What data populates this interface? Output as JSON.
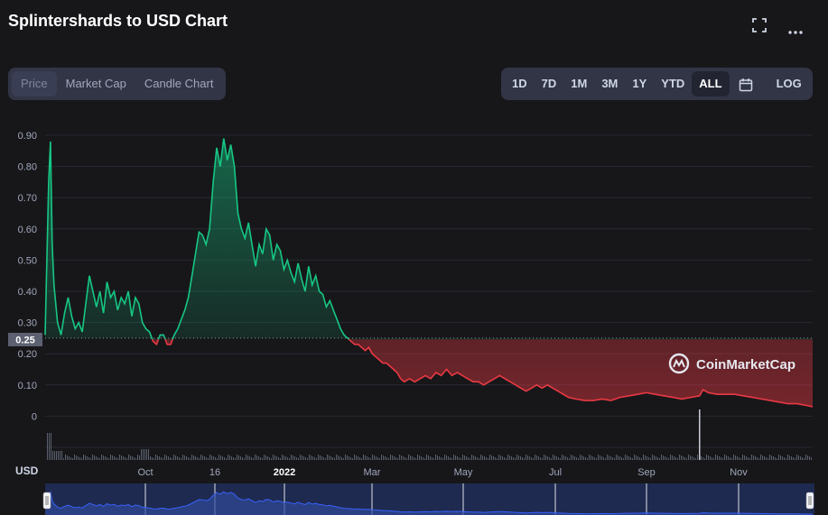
{
  "header": {
    "title": "Splintershards to USD Chart",
    "fullscreen_icon": "fullscreen-icon",
    "more_icon": "more-dots-icon"
  },
  "view_tabs": [
    {
      "label": "Price",
      "active": true
    },
    {
      "label": "Market Cap",
      "active": false
    },
    {
      "label": "Candle Chart",
      "active": false
    }
  ],
  "range_tabs": [
    {
      "label": "1D",
      "active": false
    },
    {
      "label": "7D",
      "active": false
    },
    {
      "label": "1M",
      "active": false
    },
    {
      "label": "3M",
      "active": false
    },
    {
      "label": "1Y",
      "active": false
    },
    {
      "label": "YTD",
      "active": false
    },
    {
      "label": "ALL",
      "active": true
    }
  ],
  "calendar_icon": "calendar-icon",
  "log_label": "LOG",
  "watermark": "CoinMarketCap",
  "currency_label": "USD",
  "colors": {
    "up": "#16c784",
    "down": "#ea3943",
    "background": "#17171a",
    "navigator": "#1e2a4f",
    "navigator_line": "#3861fb"
  },
  "chart_data": {
    "type": "line",
    "title": "Splintershards to USD Chart",
    "ylabel": "USD",
    "ylim": [
      0,
      0.9
    ],
    "y_ticks": [
      "0",
      "0.10",
      "0.20",
      "0.30",
      "0.40",
      "0.50",
      "0.60",
      "0.70",
      "0.80",
      "0.90"
    ],
    "x_ticks": [
      "Oct",
      "16",
      "2022",
      "Mar",
      "May",
      "Jul",
      "Sep",
      "Nov"
    ],
    "reference_price": 0.25,
    "reference_label": "0.25",
    "grid": true,
    "series": [
      {
        "points": [
          [
            0,
            0.26
          ],
          [
            2,
            0.75
          ],
          [
            3,
            0.88
          ],
          [
            4,
            0.55
          ],
          [
            5,
            0.42
          ],
          [
            7,
            0.3
          ],
          [
            9,
            0.26
          ],
          [
            11,
            0.33
          ],
          [
            13,
            0.38
          ],
          [
            15,
            0.32
          ],
          [
            17,
            0.28
          ],
          [
            19,
            0.3
          ],
          [
            21,
            0.27
          ],
          [
            23,
            0.36
          ],
          [
            25,
            0.45
          ],
          [
            27,
            0.4
          ],
          [
            29,
            0.35
          ],
          [
            31,
            0.4
          ],
          [
            33,
            0.33
          ],
          [
            35,
            0.43
          ],
          [
            37,
            0.38
          ],
          [
            39,
            0.4
          ],
          [
            41,
            0.34
          ],
          [
            43,
            0.38
          ],
          [
            45,
            0.36
          ],
          [
            47,
            0.4
          ],
          [
            49,
            0.32
          ],
          [
            51,
            0.38
          ],
          [
            53,
            0.36
          ],
          [
            55,
            0.3
          ],
          [
            57,
            0.28
          ],
          [
            59,
            0.27
          ],
          [
            61,
            0.24
          ],
          [
            63,
            0.23
          ],
          [
            65,
            0.26
          ],
          [
            67,
            0.26
          ],
          [
            69,
            0.23
          ],
          [
            71,
            0.23
          ],
          [
            73,
            0.26
          ],
          [
            75,
            0.28
          ],
          [
            77,
            0.31
          ],
          [
            79,
            0.34
          ],
          [
            81,
            0.38
          ],
          [
            83,
            0.45
          ],
          [
            85,
            0.52
          ],
          [
            87,
            0.59
          ],
          [
            89,
            0.58
          ],
          [
            91,
            0.55
          ],
          [
            93,
            0.6
          ],
          [
            95,
            0.75
          ],
          [
            97,
            0.86
          ],
          [
            99,
            0.8
          ],
          [
            101,
            0.89
          ],
          [
            103,
            0.82
          ],
          [
            105,
            0.87
          ],
          [
            107,
            0.8
          ],
          [
            109,
            0.65
          ],
          [
            111,
            0.6
          ],
          [
            113,
            0.57
          ],
          [
            115,
            0.62
          ],
          [
            117,
            0.55
          ],
          [
            119,
            0.48
          ],
          [
            121,
            0.55
          ],
          [
            123,
            0.52
          ],
          [
            125,
            0.6
          ],
          [
            127,
            0.58
          ],
          [
            129,
            0.5
          ],
          [
            131,
            0.55
          ],
          [
            133,
            0.53
          ],
          [
            135,
            0.47
          ],
          [
            137,
            0.5
          ],
          [
            139,
            0.46
          ],
          [
            141,
            0.43
          ],
          [
            143,
            0.49
          ],
          [
            145,
            0.44
          ],
          [
            147,
            0.4
          ],
          [
            149,
            0.48
          ],
          [
            151,
            0.42
          ],
          [
            153,
            0.45
          ],
          [
            155,
            0.4
          ],
          [
            157,
            0.39
          ],
          [
            159,
            0.35
          ],
          [
            161,
            0.37
          ],
          [
            163,
            0.34
          ],
          [
            165,
            0.31
          ],
          [
            167,
            0.28
          ],
          [
            169,
            0.26
          ],
          [
            171,
            0.25
          ],
          [
            173,
            0.24
          ],
          [
            175,
            0.23
          ],
          [
            177,
            0.23
          ],
          [
            179,
            0.22
          ],
          [
            181,
            0.21
          ],
          [
            183,
            0.22
          ],
          [
            185,
            0.2
          ],
          [
            187,
            0.19
          ],
          [
            189,
            0.18
          ],
          [
            191,
            0.17
          ],
          [
            193,
            0.17
          ],
          [
            195,
            0.16
          ],
          [
            197,
            0.15
          ],
          [
            199,
            0.14
          ],
          [
            201,
            0.12
          ],
          [
            203,
            0.11
          ],
          [
            206,
            0.12
          ],
          [
            209,
            0.11
          ],
          [
            212,
            0.12
          ],
          [
            215,
            0.13
          ],
          [
            218,
            0.12
          ],
          [
            221,
            0.14
          ],
          [
            224,
            0.13
          ],
          [
            227,
            0.15
          ],
          [
            230,
            0.13
          ],
          [
            233,
            0.14
          ],
          [
            236,
            0.13
          ],
          [
            239,
            0.12
          ],
          [
            242,
            0.11
          ],
          [
            245,
            0.11
          ],
          [
            248,
            0.1
          ],
          [
            251,
            0.11
          ],
          [
            254,
            0.12
          ],
          [
            257,
            0.13
          ],
          [
            260,
            0.12
          ],
          [
            263,
            0.11
          ],
          [
            266,
            0.1
          ],
          [
            269,
            0.09
          ],
          [
            272,
            0.08
          ],
          [
            275,
            0.09
          ],
          [
            278,
            0.1
          ],
          [
            281,
            0.09
          ],
          [
            284,
            0.1
          ],
          [
            287,
            0.09
          ],
          [
            290,
            0.08
          ],
          [
            293,
            0.07
          ],
          [
            296,
            0.06
          ],
          [
            300,
            0.055
          ],
          [
            305,
            0.05
          ],
          [
            310,
            0.05
          ],
          [
            315,
            0.055
          ],
          [
            320,
            0.05
          ],
          [
            325,
            0.06
          ],
          [
            330,
            0.065
          ],
          [
            335,
            0.07
          ],
          [
            340,
            0.075
          ],
          [
            345,
            0.07
          ],
          [
            350,
            0.065
          ],
          [
            355,
            0.06
          ],
          [
            360,
            0.055
          ],
          [
            365,
            0.06
          ],
          [
            370,
            0.065
          ],
          [
            372,
            0.085
          ],
          [
            375,
            0.075
          ],
          [
            380,
            0.07
          ],
          [
            385,
            0.07
          ],
          [
            390,
            0.07
          ],
          [
            395,
            0.065
          ],
          [
            400,
            0.06
          ],
          [
            405,
            0.055
          ],
          [
            410,
            0.05
          ],
          [
            415,
            0.045
          ],
          [
            420,
            0.04
          ],
          [
            425,
            0.04
          ],
          [
            430,
            0.035
          ],
          [
            434,
            0.03
          ]
        ]
      }
    ]
  }
}
